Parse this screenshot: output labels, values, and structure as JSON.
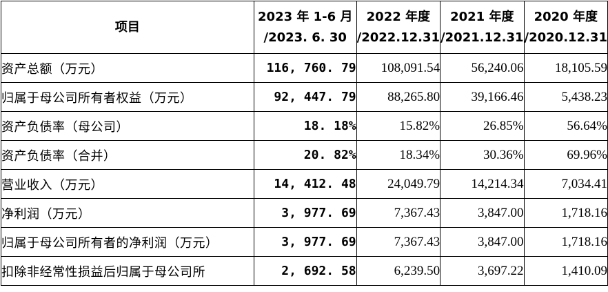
{
  "header": {
    "item": "项目",
    "periods": [
      {
        "line1": "2023 年 1-6 月",
        "line2": "/2023. 6. 30"
      },
      {
        "line1": "2022 年度",
        "line2": "/2022.12.31"
      },
      {
        "line1": "2021 年度",
        "line2": "/2021.12.31"
      },
      {
        "line1": "2020 年度",
        "line2": "/2020.12.31"
      }
    ]
  },
  "rows": [
    {
      "label": "资产总额（万元）",
      "values": [
        "116, 760. 79",
        "108,091.54",
        "56,240.06",
        "18,105.59"
      ]
    },
    {
      "label": "归属于母公司所有者权益（万元）",
      "values": [
        "92, 447. 79",
        "88,265.80",
        "39,166.46",
        "5,438.23"
      ]
    },
    {
      "label": "资产负债率（母公司）",
      "values": [
        "18. 18%",
        "15.82%",
        "26.85%",
        "56.64%"
      ]
    },
    {
      "label": "资产负债率（合并）",
      "values": [
        "20. 82%",
        "18.34%",
        "30.36%",
        "69.96%"
      ]
    },
    {
      "label": "营业收入（万元）",
      "values": [
        "14, 412. 48",
        "24,049.79",
        "14,214.34",
        "7,034.41"
      ]
    },
    {
      "label": "净利润（万元）",
      "values": [
        "3, 977. 69",
        "7,367.43",
        "3,847.00",
        "1,718.16"
      ]
    },
    {
      "label": "归属于母公司所有者的净利润（万元）",
      "values": [
        "3, 977. 69",
        "7,367.43",
        "3,847.00",
        "1,718.16"
      ]
    },
    {
      "label": "扣除非经常性损益后归属于母公司所",
      "values": [
        "2, 692. 58",
        "6,239.50",
        "3,697.22",
        "1,410.09"
      ]
    }
  ]
}
